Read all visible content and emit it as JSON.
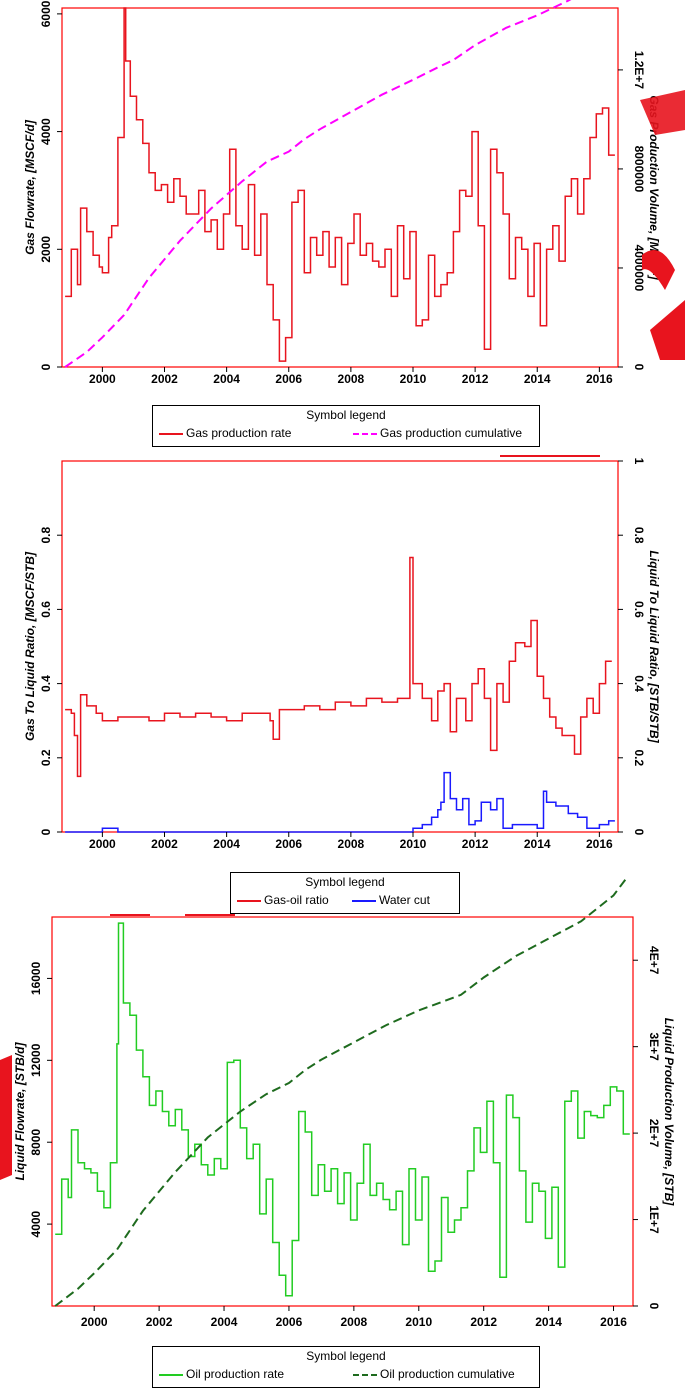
{
  "colors": {
    "frame": "#ff0000",
    "gas_rate": "#e8141e",
    "gas_cum": "#ff00ff",
    "gor": "#e8141e",
    "water_cut": "#1a1aff",
    "oil_rate": "#22cc22",
    "oil_cum": "#1e6b1e",
    "watermark": "#e8141e"
  },
  "chart_data": [
    {
      "type": "line",
      "ylabel": "Gas Flowrate, [MSCF/d]",
      "y2label": "Gas Production Volume, [MSCF]",
      "xlim": [
        1998.7,
        2016.6
      ],
      "ylim": [
        0,
        6100
      ],
      "y2lim": [
        0,
        14500000
      ],
      "xticks": [
        "2000",
        "2002",
        "2004",
        "2006",
        "2008",
        "2010",
        "2012",
        "2014",
        "2016"
      ],
      "yticks": [
        "0",
        "2000",
        "4000",
        "6000"
      ],
      "y2ticks": [
        "0",
        "4000000",
        "8000000",
        "1.2E+7"
      ],
      "legend": {
        "title": "Symbol legend",
        "items": [
          "Gas production rate",
          "Gas production cumulative"
        ]
      },
      "series": [
        {
          "name": "Gas production rate",
          "axis": "left",
          "step": true,
          "x": [
            1998.8,
            1999.0,
            1999.2,
            1999.3,
            1999.5,
            1999.7,
            1999.9,
            2000.0,
            2000.2,
            2000.3,
            2000.5,
            2000.7,
            2000.75,
            2000.9,
            2001.1,
            2001.3,
            2001.5,
            2001.7,
            2001.9,
            2002.1,
            2002.3,
            2002.5,
            2002.7,
            2002.9,
            2003.1,
            2003.3,
            2003.5,
            2003.7,
            2003.9,
            2004.1,
            2004.3,
            2004.5,
            2004.7,
            2004.9,
            2005.1,
            2005.3,
            2005.5,
            2005.7,
            2005.9,
            2006.1,
            2006.3,
            2006.5,
            2006.7,
            2006.9,
            2007.1,
            2007.3,
            2007.5,
            2007.7,
            2007.9,
            2008.1,
            2008.3,
            2008.5,
            2008.7,
            2008.9,
            2009.1,
            2009.3,
            2009.5,
            2009.7,
            2009.9,
            2010.1,
            2010.3,
            2010.5,
            2010.7,
            2010.9,
            2011.1,
            2011.3,
            2011.5,
            2011.7,
            2011.9,
            2012.1,
            2012.3,
            2012.5,
            2012.7,
            2012.9,
            2013.1,
            2013.3,
            2013.5,
            2013.7,
            2013.9,
            2014.1,
            2014.3,
            2014.5,
            2014.7,
            2014.9,
            2015.1,
            2015.3,
            2015.5,
            2015.7,
            2015.9,
            2016.1,
            2016.3
          ],
          "y": [
            1200,
            2000,
            1400,
            2700,
            2300,
            1900,
            1700,
            1600,
            2200,
            2400,
            3900,
            6100,
            5200,
            4600,
            4200,
            3800,
            3300,
            3000,
            3100,
            2800,
            3200,
            2900,
            2600,
            2600,
            3000,
            2300,
            2500,
            2000,
            2600,
            3700,
            2400,
            2000,
            3100,
            1900,
            2600,
            1400,
            800,
            100,
            500,
            2800,
            3000,
            1600,
            2200,
            1900,
            2300,
            1700,
            2200,
            1400,
            2100,
            2600,
            1900,
            2100,
            1800,
            1700,
            2000,
            1200,
            2400,
            1500,
            2300,
            700,
            800,
            1900,
            1200,
            1400,
            1600,
            2300,
            3000,
            2900,
            4000,
            2400,
            300,
            3700,
            3300,
            2600,
            1500,
            2200,
            2000,
            1200,
            2100,
            700,
            2000,
            2400,
            1800,
            2900,
            3200,
            2600,
            3200,
            3900,
            4300,
            4400,
            3600
          ]
        },
        {
          "name": "Gas production cumulative",
          "axis": "right",
          "dashed": true,
          "x": [
            1998.8,
            1999.5,
            2000.0,
            2000.7,
            2001.5,
            2002.5,
            2003.5,
            2004.5,
            2005.3,
            2006.0,
            2006.5,
            2007.0,
            2008.0,
            2009.0,
            2010.0,
            2010.8,
            2011.3,
            2012.0,
            2013.0,
            2014.0,
            2015.0,
            2016.0,
            2016.4
          ],
          "y": [
            0,
            600000,
            1200000,
            2100000,
            3600000,
            5100000,
            6400000,
            7500000,
            8300000,
            8700000,
            9200000,
            9600000,
            10300000,
            11000000,
            11600000,
            12100000,
            12400000,
            13000000,
            13700000,
            14200000,
            14800000,
            15500000,
            16100000
          ]
        }
      ]
    },
    {
      "type": "line",
      "ylabel": "Gas To Liquid Ratio, [MSCF/STB]",
      "y2label": "Liquid To Liquid Ratio, [STB/STB]",
      "xlim": [
        1998.7,
        2016.6
      ],
      "ylim": [
        0,
        1
      ],
      "y2lim": [
        0,
        1
      ],
      "xticks": [
        "2000",
        "2002",
        "2004",
        "2006",
        "2008",
        "2010",
        "2012",
        "2014",
        "2016"
      ],
      "yticks": [
        "0",
        "0.2",
        "0.4",
        "0.6",
        "0.8"
      ],
      "y2ticks": [
        "0",
        "0.2",
        "0.4",
        "0.6",
        "0.8",
        "1"
      ],
      "legend": {
        "title": "Symbol legend",
        "items": [
          "Gas-oil ratio",
          "Water cut"
        ]
      },
      "series": [
        {
          "name": "Gas-oil ratio",
          "axis": "left",
          "step": true,
          "x": [
            1998.8,
            1999.0,
            1999.1,
            1999.2,
            1999.3,
            1999.5,
            1999.8,
            2000.0,
            2000.5,
            2001.0,
            2001.5,
            2002.0,
            2002.5,
            2003.0,
            2003.5,
            2004.0,
            2004.5,
            2005.0,
            2005.4,
            2005.5,
            2005.7,
            2006.0,
            2006.5,
            2007.0,
            2007.5,
            2008.0,
            2008.5,
            2009.0,
            2009.5,
            2009.8,
            2009.9,
            2010.0,
            2010.3,
            2010.6,
            2010.8,
            2011.0,
            2011.2,
            2011.4,
            2011.7,
            2011.9,
            2012.1,
            2012.3,
            2012.5,
            2012.7,
            2012.9,
            2013.1,
            2013.3,
            2013.6,
            2013.8,
            2014.0,
            2014.2,
            2014.4,
            2014.6,
            2014.8,
            2015.0,
            2015.2,
            2015.4,
            2015.6,
            2015.8,
            2016.0,
            2016.2
          ],
          "y": [
            0.33,
            0.32,
            0.26,
            0.15,
            0.37,
            0.34,
            0.32,
            0.3,
            0.31,
            0.31,
            0.3,
            0.32,
            0.31,
            0.32,
            0.31,
            0.3,
            0.32,
            0.32,
            0.3,
            0.25,
            0.33,
            0.33,
            0.34,
            0.33,
            0.35,
            0.34,
            0.36,
            0.35,
            0.36,
            0.36,
            0.74,
            0.4,
            0.36,
            0.3,
            0.38,
            0.4,
            0.27,
            0.36,
            0.3,
            0.4,
            0.44,
            0.36,
            0.22,
            0.4,
            0.35,
            0.46,
            0.51,
            0.5,
            0.57,
            0.42,
            0.36,
            0.31,
            0.28,
            0.26,
            0.26,
            0.21,
            0.31,
            0.36,
            0.32,
            0.4,
            0.46
          ]
        },
        {
          "name": "Water cut",
          "axis": "right",
          "step": true,
          "x": [
            1998.8,
            1999.5,
            2000.0,
            2000.5,
            2001.0,
            2005.0,
            2006.0,
            2009.5,
            2010.0,
            2010.3,
            2010.6,
            2010.8,
            2010.9,
            2011.0,
            2011.2,
            2011.4,
            2011.6,
            2011.8,
            2012.0,
            2012.2,
            2012.5,
            2012.7,
            2012.9,
            2013.2,
            2013.6,
            2014.0,
            2014.2,
            2014.3,
            2014.6,
            2015.0,
            2015.3,
            2015.6,
            2016.0,
            2016.3
          ],
          "y": [
            0.0,
            0.0,
            0.01,
            0.0,
            0.0,
            0.0,
            0.0,
            0.0,
            0.01,
            0.02,
            0.04,
            0.06,
            0.08,
            0.16,
            0.09,
            0.06,
            0.09,
            0.02,
            0.03,
            0.08,
            0.06,
            0.09,
            0.01,
            0.02,
            0.02,
            0.01,
            0.11,
            0.08,
            0.07,
            0.05,
            0.04,
            0.01,
            0.02,
            0.03
          ]
        }
      ]
    },
    {
      "type": "line",
      "ylabel": "Liquid Flowrate, [STB/d]",
      "y2label": "Liquid Production Volume, [STB]",
      "xlim": [
        1998.7,
        2016.6
      ],
      "ylim": [
        0,
        19000
      ],
      "y2lim": [
        0,
        45000000
      ],
      "xticks": [
        "2000",
        "2002",
        "2004",
        "2006",
        "2008",
        "2010",
        "2012",
        "2014",
        "2016"
      ],
      "yticks": [
        "4000",
        "8000",
        "12000",
        "16000"
      ],
      "y2ticks": [
        "0",
        "1E+7",
        "2E+7",
        "3E+7",
        "4E+7"
      ],
      "legend": {
        "title": "Symbol legend",
        "items": [
          "Oil production rate",
          "Oil production cumulative"
        ]
      },
      "series": [
        {
          "name": "Oil production rate",
          "axis": "left",
          "step": true,
          "x": [
            1998.8,
            1999.0,
            1999.2,
            1999.3,
            1999.5,
            1999.7,
            1999.9,
            2000.1,
            2000.3,
            2000.5,
            2000.7,
            2000.75,
            2000.9,
            2001.1,
            2001.3,
            2001.5,
            2001.7,
            2001.9,
            2002.1,
            2002.3,
            2002.5,
            2002.7,
            2002.9,
            2003.1,
            2003.3,
            2003.5,
            2003.7,
            2003.9,
            2004.1,
            2004.3,
            2004.5,
            2004.7,
            2004.9,
            2005.1,
            2005.3,
            2005.5,
            2005.7,
            2005.9,
            2006.1,
            2006.3,
            2006.5,
            2006.7,
            2006.9,
            2007.1,
            2007.3,
            2007.5,
            2007.7,
            2007.9,
            2008.1,
            2008.3,
            2008.5,
            2008.7,
            2008.9,
            2009.1,
            2009.3,
            2009.5,
            2009.7,
            2009.9,
            2010.1,
            2010.3,
            2010.5,
            2010.7,
            2010.9,
            2011.1,
            2011.3,
            2011.5,
            2011.7,
            2011.9,
            2012.1,
            2012.3,
            2012.5,
            2012.7,
            2012.9,
            2013.1,
            2013.3,
            2013.5,
            2013.7,
            2013.9,
            2014.1,
            2014.3,
            2014.5,
            2014.7,
            2014.9,
            2015.1,
            2015.3,
            2015.5,
            2015.7,
            2015.9,
            2016.1,
            2016.3
          ],
          "y": [
            3500,
            6200,
            5300,
            8600,
            7000,
            6700,
            6500,
            5600,
            4800,
            7000,
            12800,
            18700,
            14800,
            14200,
            12500,
            11200,
            9800,
            10500,
            9500,
            8800,
            9600,
            8600,
            7300,
            7900,
            6900,
            6400,
            7200,
            6700,
            11900,
            12000,
            8700,
            7200,
            7900,
            4500,
            6200,
            3100,
            1500,
            500,
            3200,
            9500,
            8500,
            5400,
            6900,
            5600,
            6700,
            5000,
            6500,
            4200,
            6000,
            7900,
            5400,
            6000,
            5200,
            4700,
            5600,
            3000,
            6700,
            4200,
            6300,
            1700,
            2200,
            5300,
            3600,
            4200,
            4800,
            6600,
            8700,
            7500,
            10000,
            7000,
            1400,
            10300,
            9200,
            6600,
            4100,
            6000,
            5600,
            3300,
            5800,
            1900,
            10000,
            10500,
            8200,
            9500,
            9300,
            9200,
            9800,
            10700,
            10500,
            8400
          ]
        },
        {
          "name": "Oil production cumulative",
          "axis": "right",
          "dashed": true,
          "x": [
            1998.8,
            1999.5,
            2000.0,
            2000.7,
            2001.5,
            2002.5,
            2003.5,
            2004.5,
            2005.3,
            2006.0,
            2006.5,
            2007.0,
            2008.0,
            2009.0,
            2010.0,
            2010.8,
            2011.3,
            2012.0,
            2013.0,
            2014.0,
            2015.0,
            2016.0,
            2016.4
          ],
          "y": [
            0,
            2000000,
            3800000,
            6500000,
            11000000,
            15500000,
            19500000,
            22500000,
            24500000,
            25800000,
            27300000,
            28500000,
            30500000,
            32500000,
            34200000,
            35300000,
            36000000,
            38000000,
            40500000,
            42500000,
            44500000,
            47500000,
            49500000
          ]
        }
      ]
    }
  ]
}
